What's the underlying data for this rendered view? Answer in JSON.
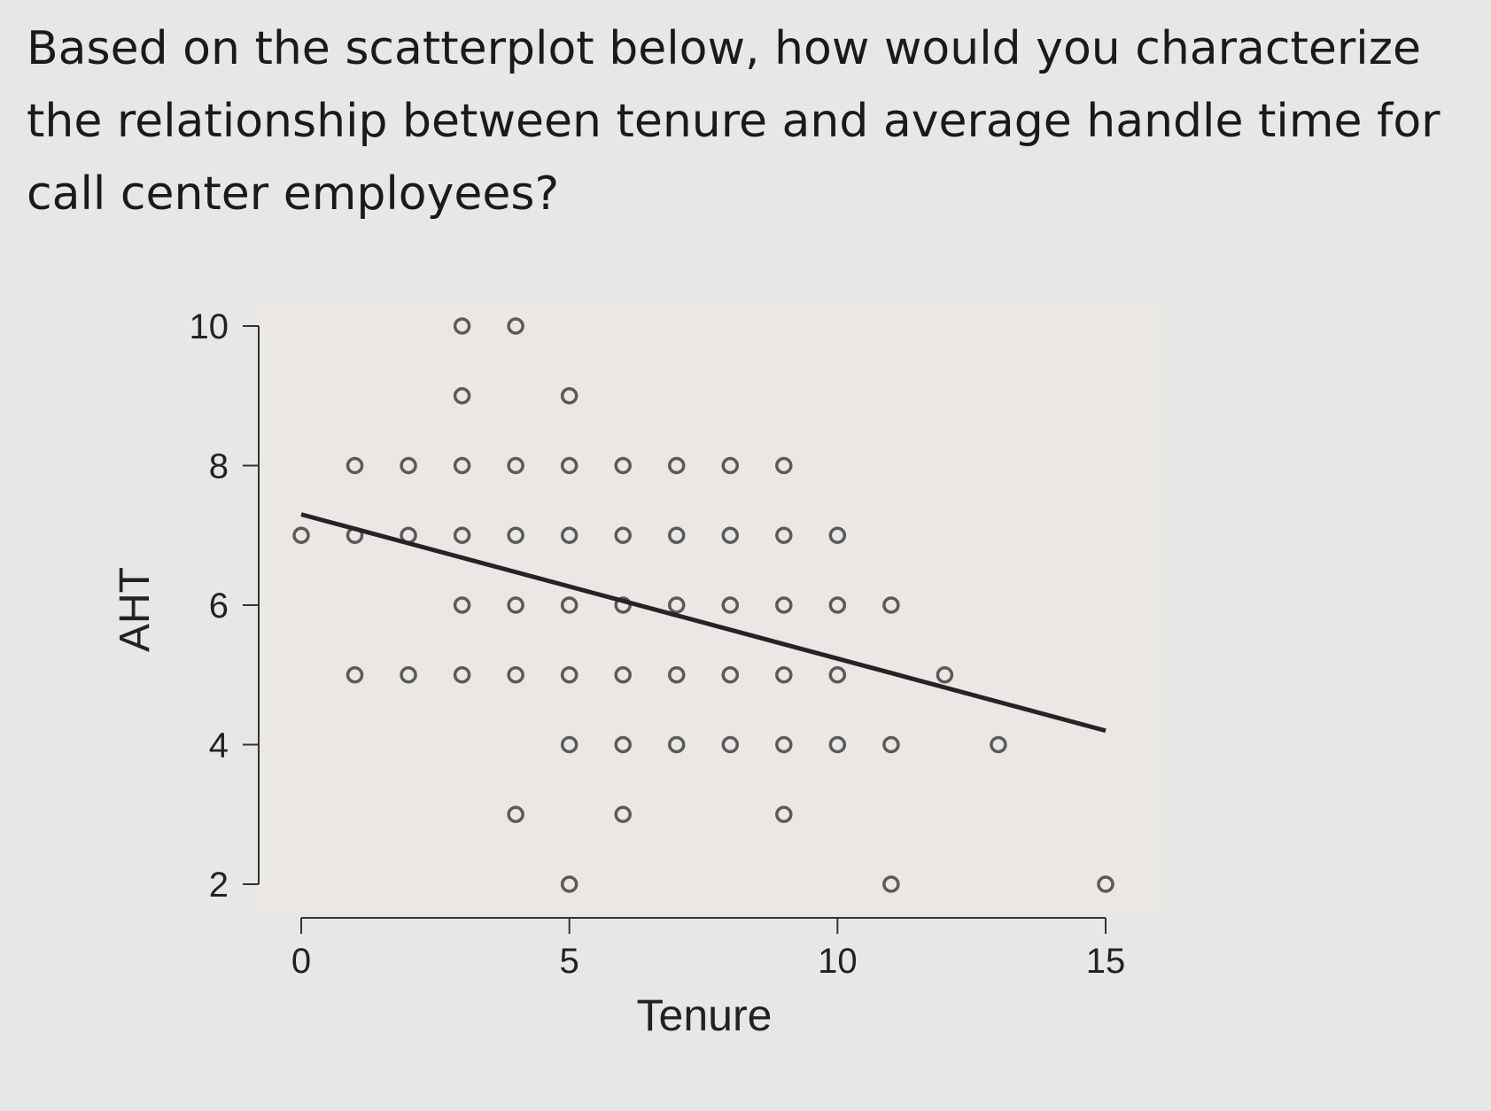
{
  "question": {
    "text": "Based on the scatterplot below, how would you characterize the relationship between tenure and average handle time for call center employees?"
  },
  "chart_data": {
    "type": "scatter",
    "xlabel": "Tenure",
    "ylabel": "AHT",
    "xlim": [
      0,
      15
    ],
    "ylim": [
      2,
      10
    ],
    "x_ticks": [
      "0",
      "5",
      "10",
      "15"
    ],
    "y_ticks": [
      "2",
      "4",
      "6",
      "8",
      "10"
    ],
    "grid": false,
    "legend": "none",
    "colors": {
      "panel_background": "#ebe7e4",
      "point_stroke": "#5a5a5a",
      "line": "#2a2128"
    },
    "points": [
      [
        3,
        10
      ],
      [
        4,
        10
      ],
      [
        3,
        9
      ],
      [
        5,
        9
      ],
      [
        1,
        8
      ],
      [
        2,
        8
      ],
      [
        3,
        8
      ],
      [
        4,
        8
      ],
      [
        5,
        8
      ],
      [
        6,
        8
      ],
      [
        7,
        8
      ],
      [
        8,
        8
      ],
      [
        9,
        8
      ],
      [
        0,
        7
      ],
      [
        1,
        7
      ],
      [
        2,
        7
      ],
      [
        3,
        7
      ],
      [
        4,
        7
      ],
      [
        5,
        7
      ],
      [
        6,
        7
      ],
      [
        7,
        7
      ],
      [
        8,
        7
      ],
      [
        9,
        7
      ],
      [
        10,
        7
      ],
      [
        3,
        6
      ],
      [
        4,
        6
      ],
      [
        5,
        6
      ],
      [
        6,
        6
      ],
      [
        7,
        6
      ],
      [
        8,
        6
      ],
      [
        9,
        6
      ],
      [
        10,
        6
      ],
      [
        11,
        6
      ],
      [
        1,
        5
      ],
      [
        2,
        5
      ],
      [
        3,
        5
      ],
      [
        4,
        5
      ],
      [
        5,
        5
      ],
      [
        6,
        5
      ],
      [
        7,
        5
      ],
      [
        8,
        5
      ],
      [
        9,
        5
      ],
      [
        10,
        5
      ],
      [
        12,
        5
      ],
      [
        5,
        4
      ],
      [
        6,
        4
      ],
      [
        7,
        4
      ],
      [
        8,
        4
      ],
      [
        9,
        4
      ],
      [
        10,
        4
      ],
      [
        11,
        4
      ],
      [
        13,
        4
      ],
      [
        4,
        3
      ],
      [
        6,
        3
      ],
      [
        9,
        3
      ],
      [
        5,
        2
      ],
      [
        11,
        2
      ],
      [
        15,
        2
      ]
    ],
    "fit_line": {
      "x": [
        0,
        15
      ],
      "y": [
        7.3,
        4.2
      ]
    }
  }
}
